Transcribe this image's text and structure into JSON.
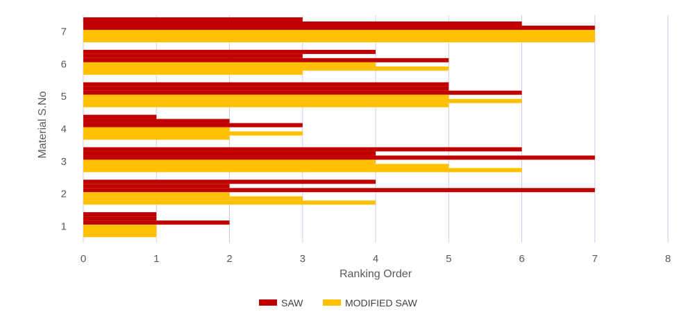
{
  "chart_data": {
    "type": "bar",
    "orientation": "horizontal",
    "title": "",
    "xlabel": "Ranking Order",
    "ylabel": "Material S.No",
    "xlim": [
      0,
      8
    ],
    "xticks": [
      "0",
      "1",
      "2",
      "3",
      "4",
      "5",
      "6",
      "7",
      "8"
    ],
    "grid": "vertical",
    "legend_position": "bottom",
    "categories": [
      "1",
      "2",
      "3",
      "4",
      "5",
      "6",
      "7"
    ],
    "series": [
      {
        "name": "SAW",
        "color": "#c00000",
        "values_by_category": {
          "1": [
            1,
            1,
            2
          ],
          "2": [
            4,
            2,
            7
          ],
          "3": [
            6,
            4,
            7
          ],
          "4": [
            1,
            2,
            3
          ],
          "5": [
            5,
            5,
            6
          ],
          "6": [
            4,
            3,
            5
          ],
          "7": [
            3,
            6,
            7
          ]
        }
      },
      {
        "name": "MODIFIED SAW",
        "color": "#ffc000",
        "values_by_category": {
          "1": [
            1,
            1,
            1
          ],
          "2": [
            2,
            3,
            4
          ],
          "3": [
            4,
            5,
            6
          ],
          "4": [
            2,
            3,
            2
          ],
          "5": [
            5,
            6,
            5
          ],
          "6": [
            4,
            5,
            3
          ],
          "7": [
            7,
            7,
            7
          ]
        }
      }
    ]
  }
}
